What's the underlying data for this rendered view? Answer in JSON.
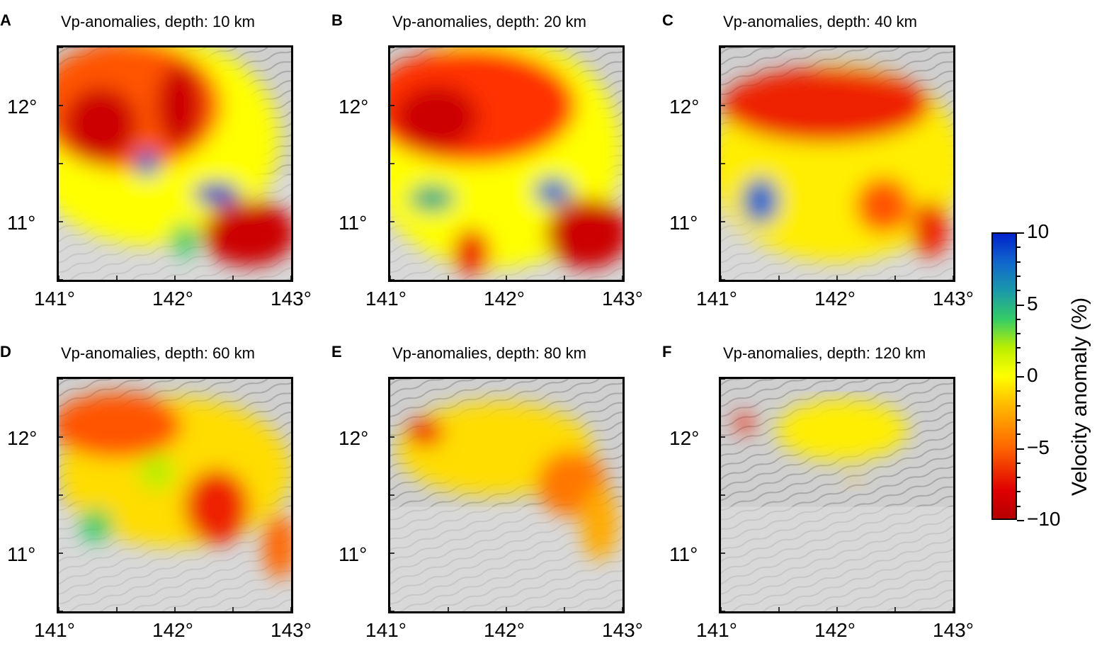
{
  "panels": [
    {
      "letter": "A",
      "title": "Vp-anomalies, depth: 10 km"
    },
    {
      "letter": "B",
      "title": "Vp-anomalies, depth: 20 km"
    },
    {
      "letter": "C",
      "title": "Vp-anomalies, depth: 40 km"
    },
    {
      "letter": "D",
      "title": "Vp-anomalies, depth: 60 km"
    },
    {
      "letter": "E",
      "title": "Vp-anomalies, depth: 80 km"
    },
    {
      "letter": "F",
      "title": "Vp-anomalies, depth: 120 km"
    }
  ],
  "axes": {
    "x_ticks": [
      "141°",
      "142°",
      "143°"
    ],
    "y_ticks": [
      "12°",
      "11°"
    ]
  },
  "colorbar": {
    "title": "Velocity anomaly (%)",
    "tick_labels": [
      "10",
      "5",
      "0",
      "−5",
      "−10"
    ],
    "range": [
      -10,
      10
    ],
    "colors": [
      "#b50000",
      "#d40000",
      "#ee2200",
      "#ff5500",
      "#ff8a00",
      "#ffbb00",
      "#ffe000",
      "#ffff00",
      "#d9ff00",
      "#8cee33",
      "#33cc77",
      "#1aaa99",
      "#1177cc",
      "#0033cc"
    ]
  },
  "colors": {
    "background": "#ffffff",
    "terrain": "#c8c8c8"
  }
}
